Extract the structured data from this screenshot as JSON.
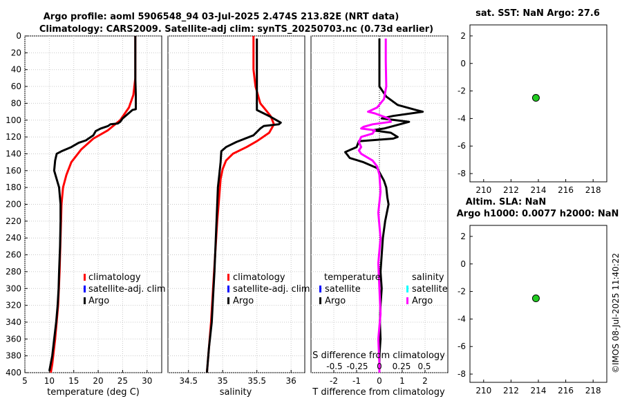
{
  "figure": {
    "title_line1": "Argo profile: aoml 5906548_94 03-Jul-2025 2.474S 213.82E (NRT data)",
    "title_line2": "Climatology: CARS2009. Satellite-adj clim: synTS_20250703.nc (0.73d earlier)",
    "side_stamp": "©IMOS 08-Jul-2025 11:40:22"
  },
  "colors": {
    "argo": "#000000",
    "climatology": "#ff0000",
    "satellite": "#0000ff",
    "salinity_argo": "#ff00ff",
    "salinity_satellite": "#00ffff",
    "marker": "#22cc22"
  },
  "chart_data": [
    {
      "type": "line",
      "id": "temperature",
      "xlabel": "temperature (deg C)",
      "ylabel": "",
      "xlim": [
        5,
        33
      ],
      "ylim": [
        400,
        0
      ],
      "xticks": [
        5,
        10,
        15,
        20,
        25,
        30
      ],
      "yticks": [
        0,
        20,
        40,
        60,
        80,
        100,
        120,
        140,
        160,
        180,
        200,
        220,
        240,
        260,
        280,
        300,
        320,
        340,
        360,
        380,
        400
      ],
      "grid": true,
      "legend": [
        "climatology",
        "satellite-adj. clim",
        "Argo"
      ],
      "series": [
        {
          "name": "climatology",
          "color": "#ff0000",
          "points": [
            [
              27.6,
              0
            ],
            [
              27.6,
              20
            ],
            [
              27.6,
              50
            ],
            [
              27.2,
              70
            ],
            [
              26.3,
              85
            ],
            [
              24.5,
              100
            ],
            [
              22,
              112
            ],
            [
              19,
              122
            ],
            [
              16.5,
              135
            ],
            [
              14.5,
              150
            ],
            [
              13.5,
              165
            ],
            [
              12.8,
              180
            ],
            [
              12.5,
              200
            ],
            [
              12.3,
              240
            ],
            [
              12.1,
              280
            ],
            [
              11.8,
              320
            ],
            [
              11.2,
              360
            ],
            [
              10.6,
              390
            ],
            [
              10.3,
              400
            ]
          ]
        },
        {
          "name": "Argo",
          "color": "#000000",
          "points": [
            [
              27.6,
              0
            ],
            [
              27.6,
              50
            ],
            [
              27.7,
              70
            ],
            [
              27.7,
              87
            ],
            [
              27.0,
              88
            ],
            [
              25.0,
              98
            ],
            [
              24.5,
              102
            ],
            [
              24.0,
              104
            ],
            [
              22.5,
              105
            ],
            [
              22.0,
              107
            ],
            [
              20.5,
              110
            ],
            [
              19.5,
              113
            ],
            [
              19.0,
              118
            ],
            [
              18.0,
              122
            ],
            [
              17.5,
              124
            ],
            [
              16.0,
              127
            ],
            [
              14.5,
              132
            ],
            [
              12.5,
              137
            ],
            [
              11.5,
              140
            ],
            [
              11.2,
              148
            ],
            [
              11.0,
              160
            ],
            [
              12.0,
              180
            ],
            [
              12.3,
              200
            ],
            [
              12.3,
              220
            ],
            [
              12.2,
              250
            ],
            [
              12.0,
              280
            ],
            [
              11.9,
              300
            ],
            [
              11.7,
              320
            ],
            [
              11.4,
              340
            ],
            [
              11.0,
              360
            ],
            [
              10.6,
              380
            ],
            [
              10.0,
              398
            ]
          ]
        }
      ]
    },
    {
      "type": "line",
      "id": "salinity",
      "xlabel": "salinity",
      "ylabel": "",
      "xlim": [
        34.2,
        36.2
      ],
      "ylim": [
        400,
        0
      ],
      "xticks": [
        34.5,
        35,
        35.5,
        36
      ],
      "yticks": [
        0,
        20,
        40,
        60,
        80,
        100,
        120,
        140,
        160,
        180,
        200,
        220,
        240,
        260,
        280,
        300,
        320,
        340,
        360,
        380,
        400
      ],
      "grid": true,
      "legend": [
        "climatology",
        "satellite-adj. clim",
        "Argo"
      ],
      "series": [
        {
          "name": "climatology",
          "color": "#ff0000",
          "points": [
            [
              35.45,
              0
            ],
            [
              35.45,
              40
            ],
            [
              35.48,
              60
            ],
            [
              35.55,
              80
            ],
            [
              35.7,
              95
            ],
            [
              35.75,
              105
            ],
            [
              35.68,
              115
            ],
            [
              35.5,
              125
            ],
            [
              35.35,
              132
            ],
            [
              35.15,
              140
            ],
            [
              35.05,
              148
            ],
            [
              35.0,
              158
            ],
            [
              34.97,
              170
            ],
            [
              34.95,
              190
            ],
            [
              34.92,
              220
            ],
            [
              34.89,
              260
            ],
            [
              34.86,
              300
            ],
            [
              34.83,
              340
            ],
            [
              34.8,
              370
            ],
            [
              34.77,
              400
            ]
          ]
        },
        {
          "name": "Argo",
          "color": "#000000",
          "points": [
            [
              35.5,
              3
            ],
            [
              35.5,
              60
            ],
            [
              35.5,
              88
            ],
            [
              35.7,
              96
            ],
            [
              35.85,
              103
            ],
            [
              35.82,
              105
            ],
            [
              35.6,
              107
            ],
            [
              35.55,
              110
            ],
            [
              35.45,
              118
            ],
            [
              35.2,
              126
            ],
            [
              35.05,
              132
            ],
            [
              34.98,
              137
            ],
            [
              34.97,
              150
            ],
            [
              34.95,
              165
            ],
            [
              34.93,
              180
            ],
            [
              34.92,
              200
            ],
            [
              34.9,
              240
            ],
            [
              34.88,
              280
            ],
            [
              34.86,
              310
            ],
            [
              34.84,
              340
            ],
            [
              34.8,
              370
            ],
            [
              34.77,
              400
            ]
          ]
        }
      ]
    },
    {
      "type": "line",
      "id": "differences",
      "xlabel": "T difference from climatology",
      "top_label": "S difference from climatology",
      "xlim": [
        -3,
        3
      ],
      "ylim": [
        400,
        0
      ],
      "xticks": [
        -2,
        -1,
        0,
        1,
        2
      ],
      "s_ticks": [
        "-0.5",
        "-0.25",
        "0",
        "0.25",
        "0.5"
      ],
      "yticks": [
        0,
        20,
        40,
        60,
        80,
        100,
        120,
        140,
        160,
        180,
        200,
        220,
        240,
        260,
        280,
        300,
        320,
        340,
        360,
        380,
        400
      ],
      "grid": true,
      "legend_left_title": "temperature",
      "legend_right_title": "salinity",
      "legend_left": [
        "satellite",
        "Argo"
      ],
      "legend_right": [
        "satellite",
        "Argo"
      ],
      "series": [
        {
          "name": "T Argo",
          "color": "#000000",
          "points": [
            [
              0.0,
              3
            ],
            [
              0.0,
              60
            ],
            [
              0.3,
              72
            ],
            [
              0.8,
              82
            ],
            [
              1.6,
              88
            ],
            [
              1.9,
              90
            ],
            [
              0.6,
              95
            ],
            [
              0.1,
              98
            ],
            [
              1.3,
              102
            ],
            [
              0.2,
              110
            ],
            [
              -0.3,
              112
            ],
            [
              0.5,
              115
            ],
            [
              0.8,
              120
            ],
            [
              0.6,
              122
            ],
            [
              -0.9,
              125
            ],
            [
              -1.0,
              132
            ],
            [
              -1.5,
              138
            ],
            [
              -1.3,
              145
            ],
            [
              -0.7,
              150
            ],
            [
              -0.1,
              157
            ],
            [
              0.0,
              162
            ],
            [
              0.2,
              172
            ],
            [
              0.3,
              180
            ],
            [
              0.35,
              192
            ],
            [
              0.4,
              200
            ],
            [
              0.25,
              220
            ],
            [
              0.15,
              240
            ],
            [
              0.1,
              260
            ],
            [
              0.05,
              280
            ],
            [
              0.1,
              300
            ],
            [
              0.05,
              320
            ],
            [
              0.02,
              340
            ],
            [
              0.05,
              360
            ],
            [
              0.0,
              380
            ],
            [
              0.0,
              400
            ]
          ]
        },
        {
          "name": "S Argo",
          "color": "#ff00ff",
          "points": [
            [
              0.28,
              3
            ],
            [
              0.28,
              30
            ],
            [
              0.3,
              60
            ],
            [
              0.2,
              75
            ],
            [
              -0.1,
              85
            ],
            [
              -0.5,
              90
            ],
            [
              -0.2,
              92
            ],
            [
              0.4,
              98
            ],
            [
              0.5,
              102
            ],
            [
              -0.3,
              105
            ],
            [
              -0.7,
              108
            ],
            [
              -0.8,
              110
            ],
            [
              -0.2,
              112
            ],
            [
              -0.3,
              116
            ],
            [
              -0.8,
              120
            ],
            [
              -0.9,
              126
            ],
            [
              -0.8,
              132
            ],
            [
              -0.9,
              136
            ],
            [
              -0.8,
              140
            ],
            [
              -0.3,
              148
            ],
            [
              -0.1,
              155
            ],
            [
              0.0,
              165
            ],
            [
              0.05,
              185
            ],
            [
              -0.05,
              210
            ],
            [
              0.05,
              240
            ],
            [
              -0.05,
              270
            ],
            [
              0.0,
              300
            ],
            [
              0.05,
              330
            ],
            [
              -0.05,
              360
            ],
            [
              0.0,
              390
            ],
            [
              0.0,
              400
            ]
          ]
        }
      ]
    },
    {
      "type": "scatter",
      "id": "sst",
      "title": "sat. SST: NaN Argo: 27.6",
      "xlim": [
        209,
        219
      ],
      "ylim": [
        -8.6,
        2.8
      ],
      "xticks": [
        210,
        212,
        214,
        216,
        218
      ],
      "yticks": [
        2,
        0,
        -2,
        -4,
        -6,
        -8
      ],
      "grid": false,
      "points": [
        [
          213.82,
          -2.5
        ]
      ]
    },
    {
      "type": "scatter",
      "id": "sla",
      "title_line1": "Altim. SLA: NaN",
      "title_line2": "Argo h1000: 0.0077 h2000: NaN",
      "xlim": [
        209,
        219
      ],
      "ylim": [
        -8.6,
        2.8
      ],
      "xticks": [
        210,
        212,
        214,
        216,
        218
      ],
      "yticks": [
        2,
        0,
        -2,
        -4,
        -6,
        -8
      ],
      "grid": false,
      "points": [
        [
          213.82,
          -2.5
        ]
      ]
    }
  ]
}
